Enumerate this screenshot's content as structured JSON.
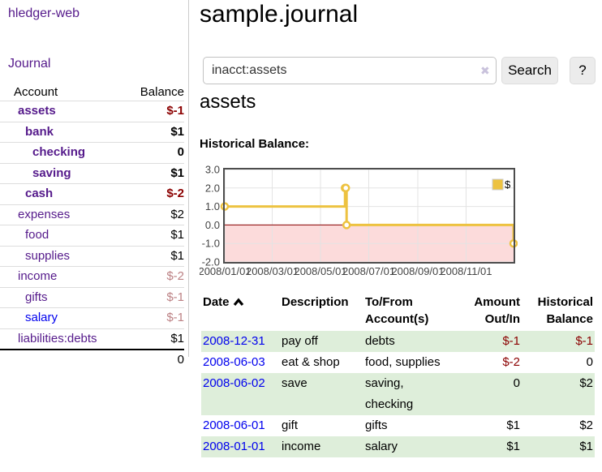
{
  "app": {
    "title": "hledger-web"
  },
  "sidebar": {
    "journal_label": "Journal",
    "accounts_table": {
      "headers": {
        "account": "Account",
        "balance": "Balance"
      },
      "rows": [
        {
          "account": "assets",
          "balance": "$-1"
        },
        {
          "account": "bank",
          "balance": "$1"
        },
        {
          "account": "checking",
          "balance": "0"
        },
        {
          "account": "saving",
          "balance": "$1"
        },
        {
          "account": "cash",
          "balance": "$-2"
        },
        {
          "account": "expenses",
          "balance": "$2"
        },
        {
          "account": "food",
          "balance": "$1"
        },
        {
          "account": "supplies",
          "balance": "$1"
        },
        {
          "account": "income",
          "balance": "$-2"
        },
        {
          "account": "gifts",
          "balance": "$-1"
        },
        {
          "account": "salary",
          "balance": "$-1"
        },
        {
          "account": "liabilities:debts",
          "balance": "$1"
        }
      ],
      "total": "0"
    }
  },
  "main": {
    "title": "sample.journal",
    "search": {
      "value": "inacct:assets",
      "clear_icon": "✖",
      "button_label": "Search",
      "help_label": "?"
    },
    "account_heading": "assets",
    "chart_heading": "Historical Balance:"
  },
  "chart_data": {
    "type": "line",
    "title": "Historical Balance:",
    "step": true,
    "series": [
      {
        "name": "$",
        "color": "#edc240",
        "points": [
          {
            "x": "2008-01-01",
            "y": 1
          },
          {
            "x": "2008-06-01",
            "y": 2
          },
          {
            "x": "2008-06-02",
            "y": 2
          },
          {
            "x": "2008-06-03",
            "y": 0
          },
          {
            "x": "2008-12-31",
            "y": -1
          }
        ]
      }
    ],
    "xlim": [
      "2008-01-01",
      "2008-12-31"
    ],
    "ylim": [
      -2,
      3
    ],
    "x_ticks": [
      "2008/01/01",
      "2008/03/01",
      "2008/05/01",
      "2008/07/01",
      "2008/09/01",
      "2008/11/01"
    ],
    "y_ticks": [
      3,
      2,
      1,
      0,
      -1,
      -2
    ],
    "grid": true,
    "legend_position": "top-right",
    "negative_region_color": "#fcdbdb",
    "zero_line_color": "#8b0000",
    "grid_color": "#e3e3e3",
    "border_color": "#4d4d4d"
  },
  "register": {
    "headers": {
      "date": "Date",
      "description": "Description",
      "accounts": "To/From Account(s)",
      "amount": "Amount Out/In",
      "balance": "Historical Balance"
    },
    "rows": [
      {
        "date": "2008-12-31",
        "description": "pay off",
        "accounts": "debts",
        "amount": "$-1",
        "balance": "$-1"
      },
      {
        "date": "2008-06-03",
        "description": "eat & shop",
        "accounts": "food, supplies",
        "amount": "$-2",
        "balance": "0"
      },
      {
        "date": "2008-06-02",
        "description": "save",
        "accounts": "saving, checking",
        "amount": "0",
        "balance": "$2"
      },
      {
        "date": "2008-06-01",
        "description": "gift",
        "accounts": "gifts",
        "amount": "$1",
        "balance": "$2"
      },
      {
        "date": "2008-01-01",
        "description": "income",
        "accounts": "salary",
        "amount": "$1",
        "balance": "$1"
      }
    ]
  },
  "colors": {
    "link_purple": "#551a8b",
    "link_blue": "#0000ee",
    "negative_strong": "#8b0000",
    "negative_dim": "#bc8184",
    "row_stripe_green": "#deeeda",
    "series_gold": "#edc240"
  }
}
